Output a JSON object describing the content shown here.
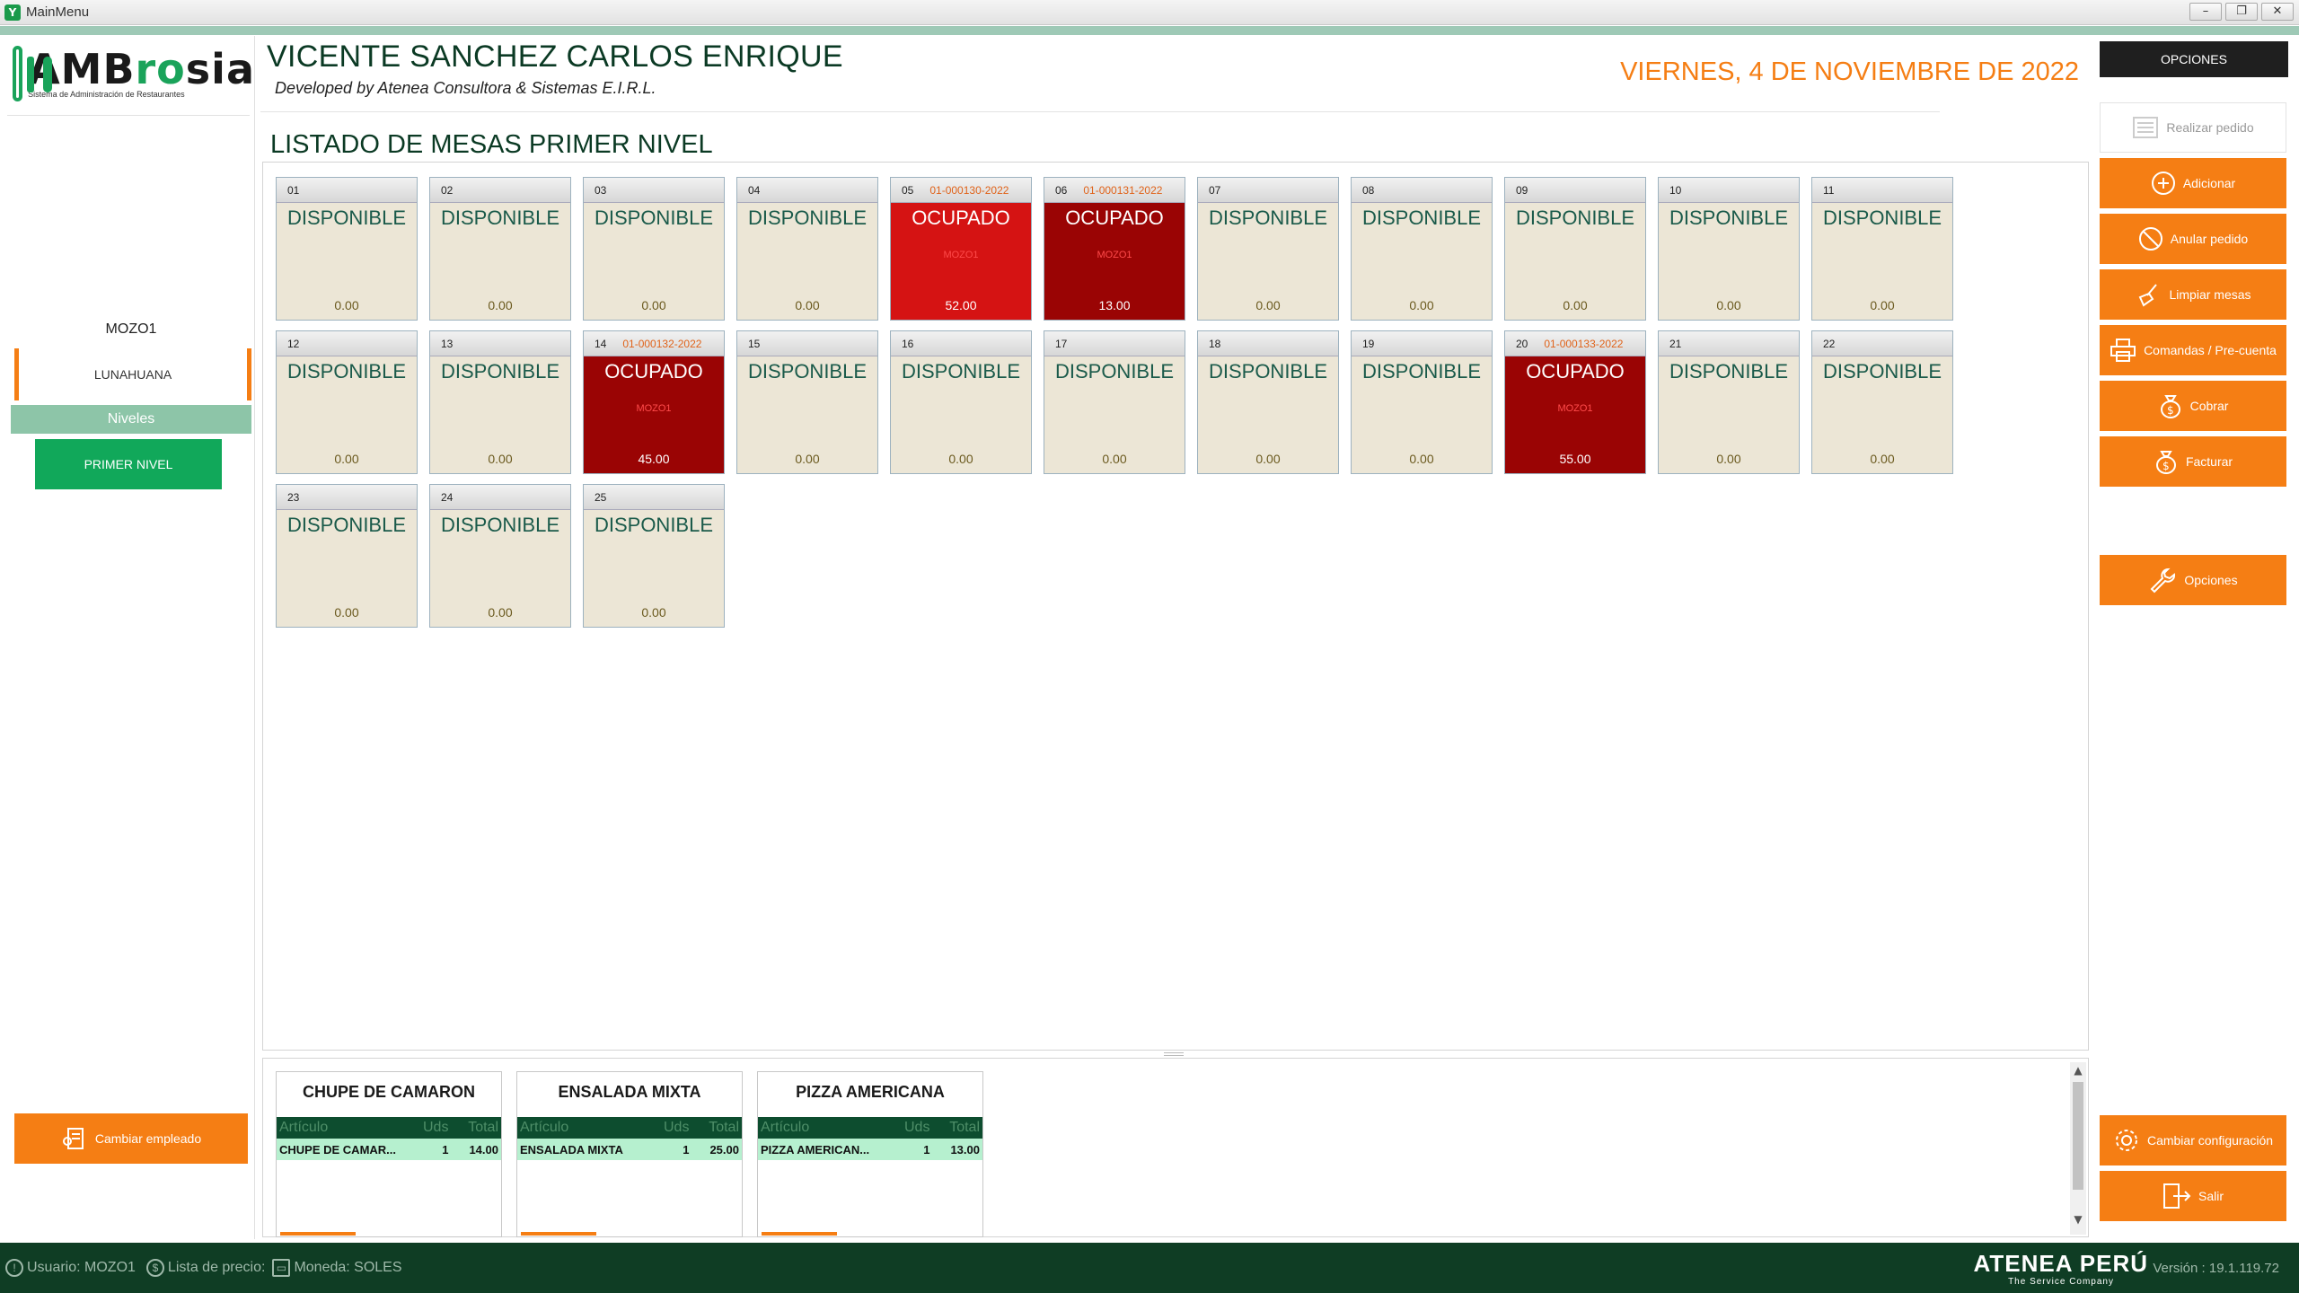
{
  "window": {
    "title": "MainMenu",
    "controls": [
      "–",
      "❐",
      "✕"
    ]
  },
  "sidebar": {
    "brand_prefix": "AMB",
    "brand_mid": "ro",
    "brand_suffix": "sia",
    "brand_sub": "Sistema de Administración de Restaurantes",
    "waiter": "MOZO1",
    "branch": "LUNAHUANA",
    "levels_header": "Niveles",
    "level_button": "PRIMER NIVEL",
    "change_employee": "Cambiar empleado"
  },
  "header": {
    "customer": "VICENTE SANCHEZ CARLOS ENRIQUE",
    "developed": "Developed by Atenea Consultora & Sistemas E.I.R.L.",
    "date": "VIERNES, 4 DE NOVIEMBRE DE 2022",
    "list_title": "LISTADO DE MESAS PRIMER NIVEL"
  },
  "tables": [
    {
      "num": "01",
      "order": "",
      "status": "DISPONIBLE",
      "waiter": "",
      "amount": "0.00",
      "state": "free"
    },
    {
      "num": "02",
      "order": "",
      "status": "DISPONIBLE",
      "waiter": "",
      "amount": "0.00",
      "state": "free"
    },
    {
      "num": "03",
      "order": "",
      "status": "DISPONIBLE",
      "waiter": "",
      "amount": "0.00",
      "state": "free"
    },
    {
      "num": "04",
      "order": "",
      "status": "DISPONIBLE",
      "waiter": "",
      "amount": "0.00",
      "state": "free"
    },
    {
      "num": "05",
      "order": "01-000130-2022",
      "status": "OCUPADO",
      "waiter": "MOZO1",
      "amount": "52.00",
      "state": "occ-red"
    },
    {
      "num": "06",
      "order": "01-000131-2022",
      "status": "OCUPADO",
      "waiter": "MOZO1",
      "amount": "13.00",
      "state": "occ-dark"
    },
    {
      "num": "07",
      "order": "",
      "status": "DISPONIBLE",
      "waiter": "",
      "amount": "0.00",
      "state": "free"
    },
    {
      "num": "08",
      "order": "",
      "status": "DISPONIBLE",
      "waiter": "",
      "amount": "0.00",
      "state": "free"
    },
    {
      "num": "09",
      "order": "",
      "status": "DISPONIBLE",
      "waiter": "",
      "amount": "0.00",
      "state": "free"
    },
    {
      "num": "10",
      "order": "",
      "status": "DISPONIBLE",
      "waiter": "",
      "amount": "0.00",
      "state": "free"
    },
    {
      "num": "11",
      "order": "",
      "status": "DISPONIBLE",
      "waiter": "",
      "amount": "0.00",
      "state": "free"
    },
    {
      "num": "12",
      "order": "",
      "status": "DISPONIBLE",
      "waiter": "",
      "amount": "0.00",
      "state": "free"
    },
    {
      "num": "13",
      "order": "",
      "status": "DISPONIBLE",
      "waiter": "",
      "amount": "0.00",
      "state": "free"
    },
    {
      "num": "14",
      "order": "01-000132-2022",
      "status": "OCUPADO",
      "waiter": "MOZO1",
      "amount": "45.00",
      "state": "occ-dark"
    },
    {
      "num": "15",
      "order": "",
      "status": "DISPONIBLE",
      "waiter": "",
      "amount": "0.00",
      "state": "free"
    },
    {
      "num": "16",
      "order": "",
      "status": "DISPONIBLE",
      "waiter": "",
      "amount": "0.00",
      "state": "free"
    },
    {
      "num": "17",
      "order": "",
      "status": "DISPONIBLE",
      "waiter": "",
      "amount": "0.00",
      "state": "free"
    },
    {
      "num": "18",
      "order": "",
      "status": "DISPONIBLE",
      "waiter": "",
      "amount": "0.00",
      "state": "free"
    },
    {
      "num": "19",
      "order": "",
      "status": "DISPONIBLE",
      "waiter": "",
      "amount": "0.00",
      "state": "free"
    },
    {
      "num": "20",
      "order": "01-000133-2022",
      "status": "OCUPADO",
      "waiter": "MOZO1",
      "amount": "55.00",
      "state": "occ-dark"
    },
    {
      "num": "21",
      "order": "",
      "status": "DISPONIBLE",
      "waiter": "",
      "amount": "0.00",
      "state": "free"
    },
    {
      "num": "22",
      "order": "",
      "status": "DISPONIBLE",
      "waiter": "",
      "amount": "0.00",
      "state": "free"
    },
    {
      "num": "23",
      "order": "",
      "status": "DISPONIBLE",
      "waiter": "",
      "amount": "0.00",
      "state": "free"
    },
    {
      "num": "24",
      "order": "",
      "status": "DISPONIBLE",
      "waiter": "",
      "amount": "0.00",
      "state": "free"
    },
    {
      "num": "25",
      "order": "",
      "status": "DISPONIBLE",
      "waiter": "",
      "amount": "0.00",
      "state": "free"
    }
  ],
  "orders": [
    {
      "name": "CHUPE DE CAMARON",
      "headers": [
        "Artículo",
        "Uds",
        "Total"
      ],
      "item": "CHUPE DE CAMAR...",
      "qty": "1",
      "total": "14.00"
    },
    {
      "name": "ENSALADA MIXTA",
      "headers": [
        "Artículo",
        "Uds",
        "Total"
      ],
      "item": "ENSALADA MIXTA",
      "qty": "1",
      "total": "25.00"
    },
    {
      "name": "PIZZA AMERICANA",
      "headers": [
        "Artículo",
        "Uds",
        "Total"
      ],
      "item": "PIZZA AMERICAN...",
      "qty": "1",
      "total": "13.00"
    }
  ],
  "options": {
    "header": "OPCIONES",
    "realizar": "Realizar pedido",
    "adicionar": "Adicionar",
    "anular": "Anular pedido",
    "limpiar": "Limpiar mesas",
    "comandas": "Comandas / Pre-cuenta",
    "cobrar": "Cobrar",
    "facturar": "Facturar",
    "opciones": "Opciones",
    "cambiar_config": "Cambiar configuración",
    "salir": "Salir"
  },
  "status": {
    "usuario": "Usuario: MOZO1",
    "lista": "Lista de precio:",
    "moneda": "Moneda: SOLES",
    "company": "ATENEA PERÚ",
    "company_sub": "The Service Company",
    "version": "Versión : 19.1.119.72"
  },
  "colors": {
    "accent": "#f57e14",
    "green": "#11a85a",
    "dark_green": "#0f3d24",
    "occupied_red": "#d51313",
    "occupied_dark": "#9a0404"
  }
}
